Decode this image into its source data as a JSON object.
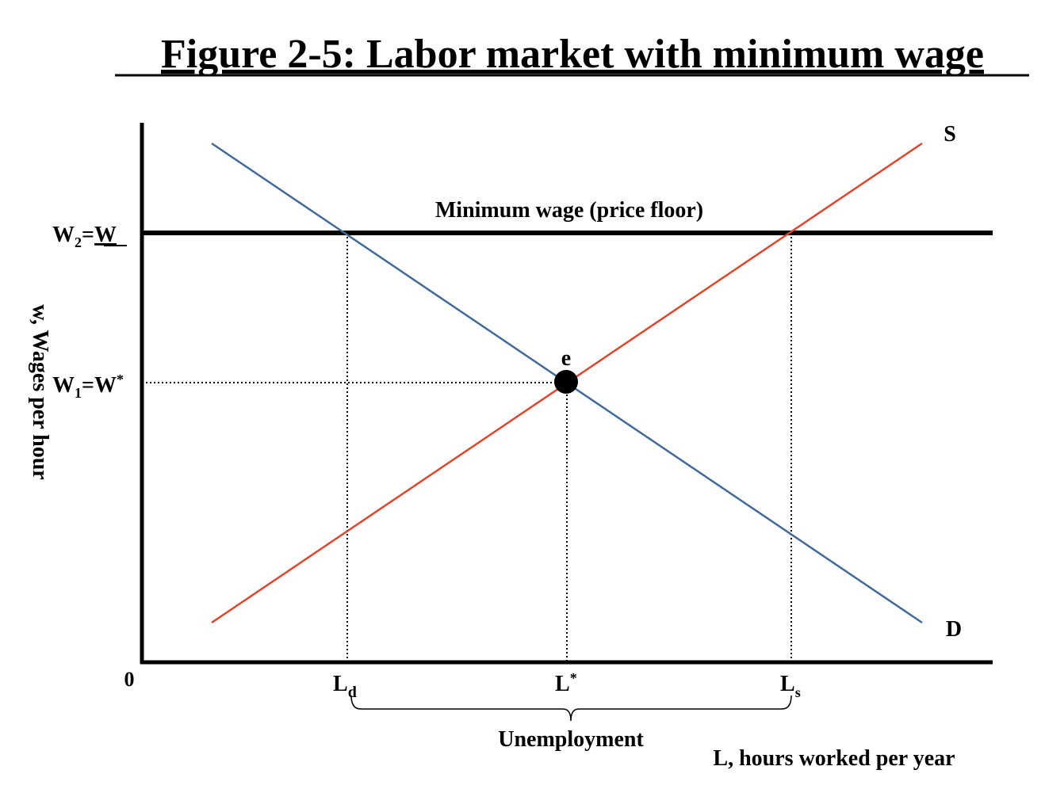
{
  "title": "Figure 2-5: Labor market with minimum wage",
  "axes": {
    "y_label": "w, Wages per hour",
    "x_label": "L, hours worked per year",
    "origin": "0"
  },
  "wage_labels": {
    "minimum": {
      "base": "W",
      "sub": "2",
      "eq": "=",
      "rest": "W"
    },
    "equilibrium": {
      "base": "W",
      "sub": "1",
      "eq": "=W",
      "sup": "*"
    }
  },
  "quantity_labels": {
    "demanded": {
      "base": "L",
      "sub": "d"
    },
    "equilibrium": {
      "base": "L",
      "sup": "*"
    },
    "supplied": {
      "base": "L",
      "sub": "s"
    }
  },
  "annotations": {
    "floor": "Minimum wage (price floor)",
    "equilibrium_point": "e",
    "supply": "S",
    "demand": "D",
    "gap": "Unemployment"
  }
}
